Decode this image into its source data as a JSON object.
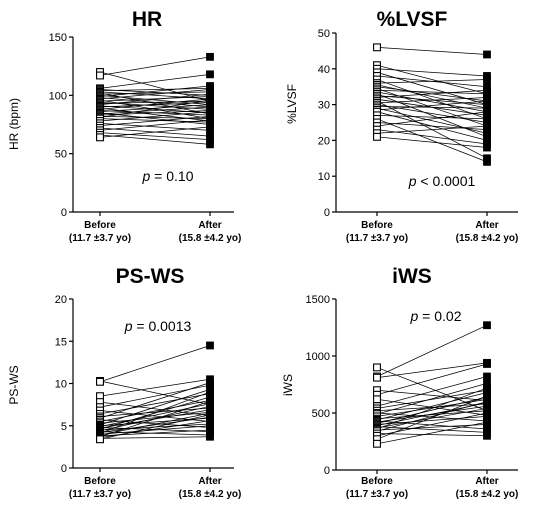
{
  "chart_data": [
    {
      "type": "scatter",
      "title": "HR",
      "ylabel": "HR (bpm)",
      "ylim": [
        0,
        150
      ],
      "yticks": [
        0,
        50,
        100,
        150
      ],
      "categories": [
        "Before",
        "After"
      ],
      "category_sublabels": [
        "(11.7 ±3.7 yo)",
        "(15.8 ±4.2 yo)"
      ],
      "annotation": {
        "var": "p",
        "text": " = 0.10"
      },
      "series": [
        {
          "values": [
            120,
            95
          ]
        },
        {
          "values": [
            117,
            133
          ]
        },
        {
          "values": [
            106,
            118
          ]
        },
        {
          "values": [
            105,
            100
          ]
        },
        {
          "values": [
            104,
            106
          ]
        },
        {
          "values": [
            103,
            97
          ]
        },
        {
          "values": [
            102,
            84
          ]
        },
        {
          "values": [
            101,
            103
          ]
        },
        {
          "values": [
            100,
            92
          ]
        },
        {
          "values": [
            99,
            108
          ]
        },
        {
          "values": [
            98,
            90
          ]
        },
        {
          "values": [
            97,
            105
          ]
        },
        {
          "values": [
            96,
            80
          ]
        },
        {
          "values": [
            95,
            99
          ]
        },
        {
          "values": [
            94,
            88
          ]
        },
        {
          "values": [
            93,
            95
          ]
        },
        {
          "values": [
            92,
            101
          ]
        },
        {
          "values": [
            91,
            85
          ]
        },
        {
          "values": [
            90,
            94
          ]
        },
        {
          "values": [
            89,
            78
          ]
        },
        {
          "values": [
            88,
            97
          ]
        },
        {
          "values": [
            87,
            83
          ]
        },
        {
          "values": [
            86,
            92
          ]
        },
        {
          "values": [
            85,
            75
          ]
        },
        {
          "values": [
            84,
            90
          ]
        },
        {
          "values": [
            83,
            87
          ]
        },
        {
          "values": [
            82,
            80
          ]
        },
        {
          "values": [
            81,
            96
          ]
        },
        {
          "values": [
            80,
            77
          ]
        },
        {
          "values": [
            78,
            86
          ]
        },
        {
          "values": [
            76,
            70
          ]
        },
        {
          "values": [
            74,
            82
          ]
        },
        {
          "values": [
            72,
            65
          ]
        },
        {
          "values": [
            70,
            79
          ]
        },
        {
          "values": [
            68,
            62
          ]
        },
        {
          "values": [
            66,
            58
          ]
        },
        {
          "values": [
            64,
            73
          ]
        }
      ]
    },
    {
      "type": "scatter",
      "title": "%LVSF",
      "ylabel": "%LVSF",
      "ylim": [
        0,
        50
      ],
      "yticks": [
        0,
        10,
        20,
        30,
        40,
        50
      ],
      "categories": [
        "Before",
        "After"
      ],
      "category_sublabels": [
        "(11.7 ±3.7 yo)",
        "(15.8 ±4.2 yo)"
      ],
      "annotation": {
        "var": "p",
        "text": " < 0.0001"
      },
      "series": [
        {
          "values": [
            46,
            44
          ]
        },
        {
          "values": [
            41,
            33
          ]
        },
        {
          "values": [
            40,
            38
          ]
        },
        {
          "values": [
            39,
            30
          ]
        },
        {
          "values": [
            38,
            35
          ]
        },
        {
          "values": [
            37,
            26
          ]
        },
        {
          "values": [
            36,
            37
          ]
        },
        {
          "values": [
            35.5,
            29
          ]
        },
        {
          "values": [
            35,
            31
          ]
        },
        {
          "values": [
            34.5,
            24
          ]
        },
        {
          "values": [
            34,
            33
          ]
        },
        {
          "values": [
            33.5,
            28
          ]
        },
        {
          "values": [
            33,
            21
          ]
        },
        {
          "values": [
            32.5,
            30
          ]
        },
        {
          "values": [
            32,
            34
          ]
        },
        {
          "values": [
            31.5,
            27
          ]
        },
        {
          "values": [
            31,
            15
          ]
        },
        {
          "values": [
            30.5,
            32
          ]
        },
        {
          "values": [
            30,
            25
          ]
        },
        {
          "values": [
            29.5,
            29
          ]
        },
        {
          "values": [
            29,
            22
          ]
        },
        {
          "values": [
            28.5,
            31
          ]
        },
        {
          "values": [
            28,
            20
          ]
        },
        {
          "values": [
            27,
            26
          ]
        },
        {
          "values": [
            26,
            14
          ]
        },
        {
          "values": [
            25,
            23
          ]
        },
        {
          "values": [
            24,
            28
          ]
        },
        {
          "values": [
            23,
            19
          ]
        },
        {
          "values": [
            22,
            24
          ]
        },
        {
          "values": [
            21,
            18
          ]
        }
      ]
    },
    {
      "type": "scatter",
      "title": "PS-WS",
      "ylabel": "PS-WS",
      "ylim": [
        0,
        20
      ],
      "yticks": [
        0,
        5,
        10,
        15,
        20
      ],
      "categories": [
        "Before",
        "After"
      ],
      "category_sublabels": [
        "(11.7 ±3.7 yo)",
        "(15.8 ±4.2 yo)"
      ],
      "annotation": {
        "var": "p",
        "text": " = 0.0013"
      },
      "series": [
        {
          "values": [
            10.3,
            7.5
          ]
        },
        {
          "values": [
            10.2,
            14.5
          ]
        },
        {
          "values": [
            8.5,
            10.5
          ]
        },
        {
          "values": [
            7.8,
            6.2
          ]
        },
        {
          "values": [
            7.2,
            9.8
          ]
        },
        {
          "values": [
            6.8,
            5.5
          ]
        },
        {
          "values": [
            6.4,
            8.8
          ]
        },
        {
          "values": [
            6.1,
            7.1
          ]
        },
        {
          "values": [
            5.9,
            10.1
          ]
        },
        {
          "values": [
            5.7,
            4.8
          ]
        },
        {
          "values": [
            5.5,
            8.0
          ]
        },
        {
          "values": [
            5.3,
            6.6
          ]
        },
        {
          "values": [
            5.1,
            9.3
          ]
        },
        {
          "values": [
            5.0,
            5.9
          ]
        },
        {
          "values": [
            4.9,
            7.6
          ]
        },
        {
          "values": [
            4.8,
            4.3
          ]
        },
        {
          "values": [
            4.7,
            6.9
          ]
        },
        {
          "values": [
            4.6,
            8.4
          ]
        },
        {
          "values": [
            4.5,
            5.2
          ]
        },
        {
          "values": [
            4.4,
            7.3
          ]
        },
        {
          "values": [
            4.3,
            3.9
          ]
        },
        {
          "values": [
            4.2,
            6.0
          ]
        },
        {
          "values": [
            4.1,
            9.0
          ]
        },
        {
          "values": [
            4.0,
            5.0
          ]
        },
        {
          "values": [
            3.9,
            6.5
          ]
        },
        {
          "values": [
            3.8,
            4.5
          ]
        },
        {
          "values": [
            3.7,
            7.9
          ]
        },
        {
          "values": [
            3.6,
            5.6
          ]
        },
        {
          "values": [
            3.5,
            3.7
          ]
        },
        {
          "values": [
            3.4,
            6.3
          ]
        }
      ]
    },
    {
      "type": "scatter",
      "title": "iWS",
      "ylabel": "iWS",
      "ylim": [
        0,
        1500
      ],
      "yticks": [
        0,
        500,
        1000,
        1500
      ],
      "categories": [
        "Before",
        "After"
      ],
      "category_sublabels": [
        "(11.7 ±3.7 yo)",
        "(15.8 ±4.2 yo)"
      ],
      "annotation": {
        "var": "p",
        "text": " = 0.02"
      },
      "series": [
        {
          "values": [
            900,
            520
          ]
        },
        {
          "values": [
            820,
            1270
          ]
        },
        {
          "values": [
            810,
            940
          ]
        },
        {
          "values": [
            700,
            610
          ]
        },
        {
          "values": [
            660,
            930
          ]
        },
        {
          "values": [
            620,
            480
          ]
        },
        {
          "values": [
            560,
            820
          ]
        },
        {
          "values": [
            540,
            700
          ]
        },
        {
          "values": [
            520,
            580
          ]
        },
        {
          "values": [
            500,
            430
          ]
        },
        {
          "values": [
            490,
            760
          ]
        },
        {
          "values": [
            470,
            620
          ]
        },
        {
          "values": [
            450,
            520
          ]
        },
        {
          "values": [
            440,
            680
          ]
        },
        {
          "values": [
            430,
            360
          ]
        },
        {
          "values": [
            420,
            560
          ]
        },
        {
          "values": [
            410,
            640
          ]
        },
        {
          "values": [
            400,
            470
          ]
        },
        {
          "values": [
            390,
            590
          ]
        },
        {
          "values": [
            380,
            330
          ]
        },
        {
          "values": [
            370,
            540
          ]
        },
        {
          "values": [
            360,
            720
          ]
        },
        {
          "values": [
            350,
            400
          ]
        },
        {
          "values": [
            340,
            600
          ]
        },
        {
          "values": [
            320,
            300
          ]
        },
        {
          "values": [
            300,
            500
          ]
        },
        {
          "values": [
            270,
            650
          ]
        },
        {
          "values": [
            230,
            420
          ]
        }
      ]
    }
  ]
}
